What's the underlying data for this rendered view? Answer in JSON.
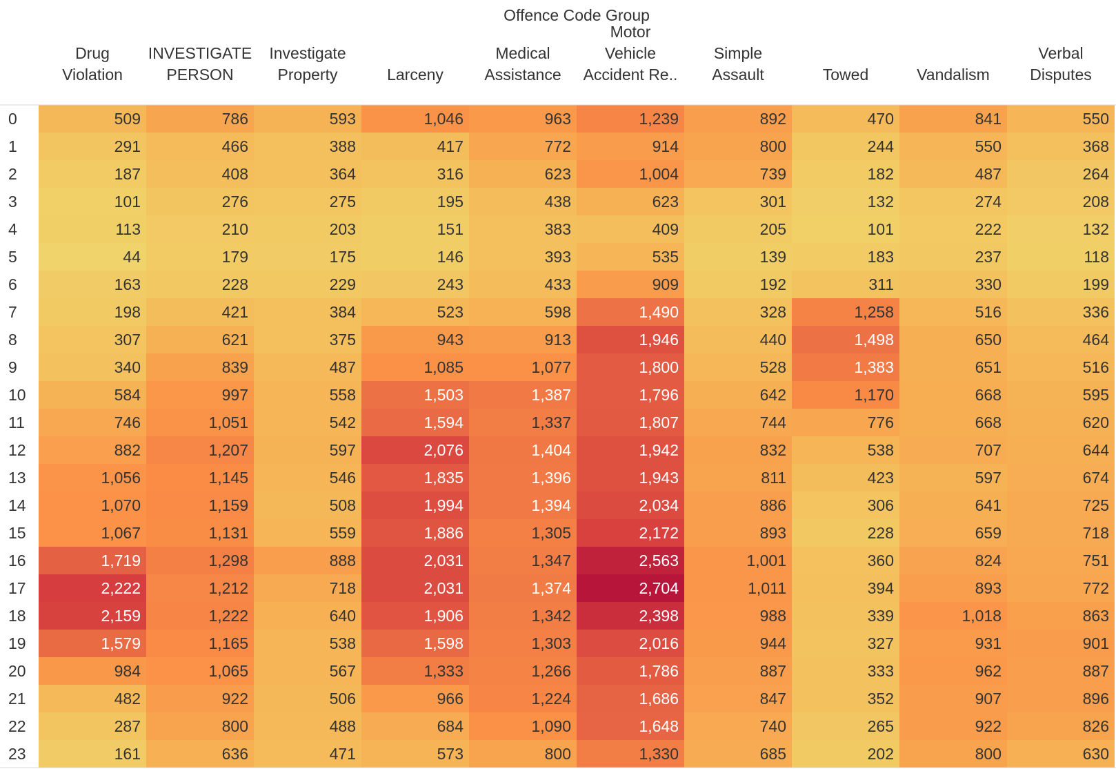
{
  "chart_data": {
    "type": "heatmap",
    "title": "Offence Code Group",
    "columns": [
      [
        "Drug",
        "Violation"
      ],
      [
        "INVESTIGATE",
        "PERSON"
      ],
      [
        "Investigate",
        "Property"
      ],
      [
        "Larceny"
      ],
      [
        "Medical",
        "Assistance"
      ],
      [
        "Motor",
        "Vehicle",
        "Accident Re.."
      ],
      [
        "Simple",
        "Assault"
      ],
      [
        "Towed"
      ],
      [
        "Vandalism"
      ],
      [
        "Verbal",
        "Disputes"
      ]
    ],
    "rows": [
      "0",
      "1",
      "2",
      "3",
      "4",
      "5",
      "6",
      "7",
      "8",
      "9",
      "10",
      "11",
      "12",
      "13",
      "14",
      "15",
      "16",
      "17",
      "18",
      "19",
      "20",
      "21",
      "22",
      "23"
    ],
    "values": [
      [
        509,
        786,
        593,
        1046,
        963,
        1239,
        892,
        470,
        841,
        550
      ],
      [
        291,
        466,
        388,
        417,
        772,
        914,
        800,
        244,
        550,
        368
      ],
      [
        187,
        408,
        364,
        316,
        623,
        1004,
        739,
        182,
        487,
        264
      ],
      [
        101,
        276,
        275,
        195,
        438,
        623,
        301,
        132,
        274,
        208
      ],
      [
        113,
        210,
        203,
        151,
        383,
        409,
        205,
        101,
        222,
        132
      ],
      [
        44,
        179,
        175,
        146,
        393,
        535,
        139,
        183,
        237,
        118
      ],
      [
        163,
        228,
        229,
        243,
        433,
        909,
        192,
        311,
        330,
        199
      ],
      [
        198,
        421,
        384,
        523,
        598,
        1490,
        328,
        1258,
        516,
        336
      ],
      [
        307,
        621,
        375,
        943,
        913,
        1946,
        440,
        1498,
        650,
        464
      ],
      [
        340,
        839,
        487,
        1085,
        1077,
        1800,
        528,
        1383,
        651,
        516
      ],
      [
        584,
        997,
        558,
        1503,
        1387,
        1796,
        642,
        1170,
        668,
        595
      ],
      [
        746,
        1051,
        542,
        1594,
        1337,
        1807,
        744,
        776,
        668,
        620
      ],
      [
        882,
        1207,
        597,
        2076,
        1404,
        1942,
        832,
        538,
        707,
        644
      ],
      [
        1056,
        1145,
        546,
        1835,
        1396,
        1943,
        811,
        423,
        597,
        674
      ],
      [
        1070,
        1159,
        508,
        1994,
        1394,
        2034,
        886,
        306,
        641,
        725
      ],
      [
        1067,
        1131,
        559,
        1886,
        1305,
        2172,
        893,
        228,
        659,
        718
      ],
      [
        1719,
        1298,
        888,
        2031,
        1347,
        2563,
        1001,
        360,
        824,
        751
      ],
      [
        2222,
        1212,
        718,
        2031,
        1374,
        2704,
        1011,
        394,
        893,
        772
      ],
      [
        2159,
        1222,
        640,
        1906,
        1342,
        2398,
        988,
        339,
        1018,
        863
      ],
      [
        1579,
        1165,
        538,
        1598,
        1303,
        2016,
        944,
        327,
        931,
        901
      ],
      [
        984,
        1065,
        567,
        1333,
        1266,
        1786,
        887,
        333,
        962,
        887
      ],
      [
        482,
        922,
        506,
        966,
        1224,
        1686,
        847,
        352,
        907,
        896
      ],
      [
        287,
        800,
        488,
        684,
        1090,
        1648,
        740,
        265,
        922,
        826
      ],
      [
        161,
        636,
        471,
        573,
        800,
        1330,
        685,
        202,
        800,
        630
      ]
    ],
    "color_scale": {
      "name": "orange-gold to red",
      "stops": [
        "#f0d36a",
        "#f6b456",
        "#fb8f46",
        "#e76644",
        "#d8413e",
        "#b8153a"
      ],
      "domain": [
        44,
        2704
      ]
    },
    "label_colors": {
      "dark": "#333333",
      "light": "#ffffff"
    }
  }
}
